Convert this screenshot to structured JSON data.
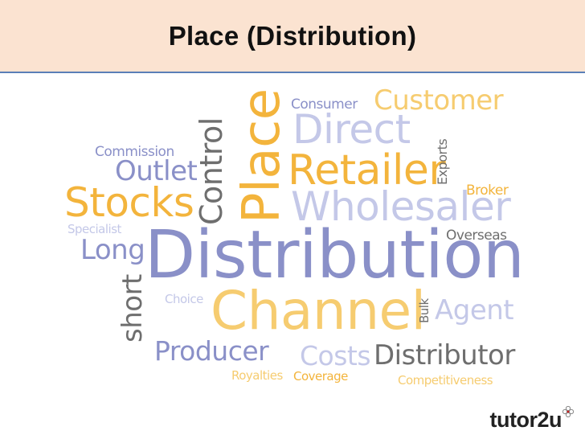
{
  "header": {
    "title": "Place (Distribution)"
  },
  "cloud": {
    "words": [
      "Place",
      "Consumer",
      "Customer",
      "Direct",
      "Commission",
      "Control",
      "Outlet",
      "Retailer",
      "Exports",
      "Broker",
      "Stocks",
      "Wholesaler",
      "Specialist",
      "Overseas",
      "Long",
      "Distribution",
      "short",
      "Choice",
      "Channel",
      "Bulk",
      "Agent",
      "Producer",
      "Costs",
      "Distributor",
      "Royalties",
      "Coverage",
      "Competitiveness"
    ],
    "colors": {
      "purple": "#8a90c8",
      "gold": "#f3b43c",
      "grey": "#6e6e6e",
      "light_purple": "#c4c8e8",
      "light_gold": "#f6cc70"
    }
  },
  "logo": {
    "text": "tutor2u",
    "icon": "flower-icon"
  }
}
